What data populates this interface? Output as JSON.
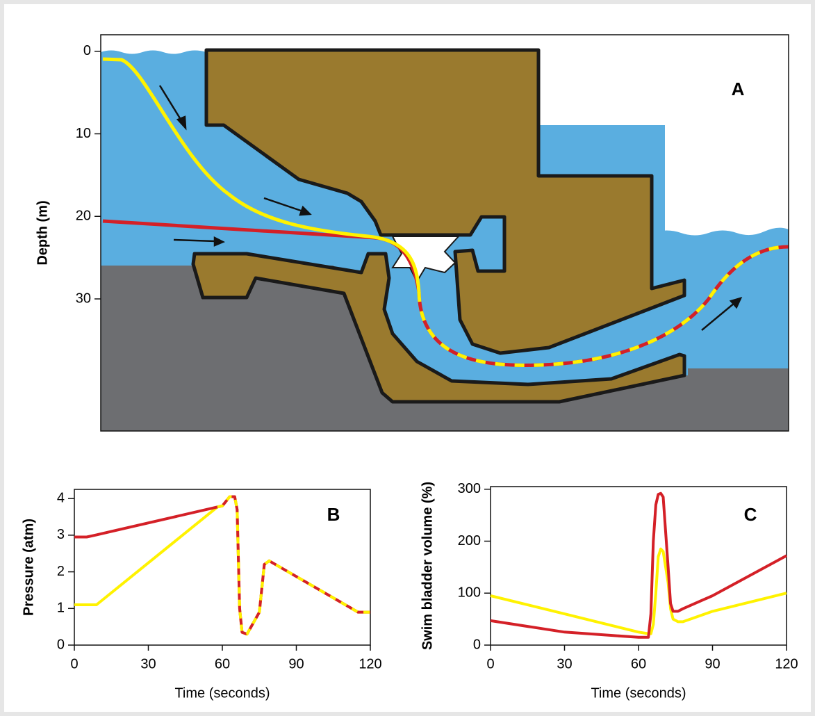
{
  "chart_data": [
    {
      "type": "diagram",
      "label": "A",
      "ylabel": "Depth (m)",
      "ylim": [
        46,
        -2
      ],
      "yticks": [
        0,
        10,
        20,
        30
      ]
    },
    {
      "type": "line",
      "label": "B",
      "xlabel": "Time (seconds)",
      "ylabel": "Pressure (atm)",
      "x": [
        0,
        5,
        9,
        58,
        60,
        63,
        65,
        66,
        67,
        68,
        70,
        75,
        77,
        79,
        115,
        120
      ],
      "xlim": [
        0,
        120
      ],
      "xticks": [
        0,
        30,
        60,
        90,
        120
      ],
      "ylim": [
        0,
        4.25
      ],
      "yticks": [
        0,
        1,
        2,
        3,
        4
      ],
      "series": [
        {
          "color": "#d42027",
          "values": [
            2.95,
            2.95,
            3.01,
            3.77,
            3.8,
            4.05,
            4.05,
            3.7,
            1.0,
            0.35,
            0.3,
            0.9,
            2.2,
            2.3,
            0.9,
            0.9
          ]
        },
        {
          "color": "#fff200",
          "values": [
            1.1,
            1.1,
            1.1,
            3.77,
            3.8,
            4.05,
            4.05,
            3.7,
            1.0,
            0.35,
            0.3,
            0.9,
            2.2,
            2.3,
            0.9,
            0.9
          ]
        }
      ]
    },
    {
      "type": "line",
      "label": "C",
      "xlabel": "Time (seconds)",
      "ylabel": "Swim bladder volume (%)",
      "x": [
        0,
        30,
        60,
        64,
        65,
        66,
        67,
        68,
        69,
        70,
        72,
        73,
        74,
        76,
        78,
        90,
        120
      ],
      "xlim": [
        0,
        120
      ],
      "xticks": [
        0,
        30,
        60,
        90,
        120
      ],
      "ylim": [
        0,
        305
      ],
      "yticks": [
        0,
        100,
        200,
        300
      ],
      "series": [
        {
          "color": "#d42027",
          "values": [
            47,
            25,
            15,
            15,
            60,
            200,
            270,
            290,
            292,
            285,
            150,
            80,
            65,
            65,
            70,
            95,
            172
          ]
        },
        {
          "color": "#fff200",
          "values": [
            95,
            60,
            25,
            22,
            22,
            40,
            100,
            170,
            185,
            180,
            120,
            70,
            50,
            45,
            45,
            65,
            100
          ]
        }
      ]
    }
  ]
}
